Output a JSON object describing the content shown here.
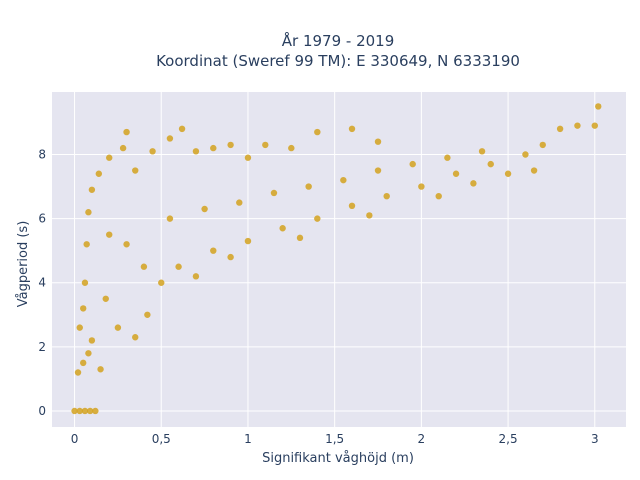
{
  "chart_data": {
    "type": "scatter",
    "title_lines": [
      "År 1979 - 2019",
      "Koordinat (Sweref 99 TM): E 330649, N 6333190"
    ],
    "xlabel": "Signifikant våghöjd (m)",
    "ylabel": "Vågperiod (s)",
    "xlim": [
      -0.13,
      3.18
    ],
    "ylim": [
      -0.5,
      9.95
    ],
    "x_ticks": [
      0,
      0.5,
      1,
      1.5,
      2,
      2.5,
      3
    ],
    "x_tick_labels": [
      "0",
      "0,5",
      "1",
      "1,5",
      "2",
      "2,5",
      "3"
    ],
    "y_ticks": [
      0,
      2,
      4,
      6,
      8
    ],
    "y_tick_labels": [
      "0",
      "2",
      "4",
      "6",
      "8"
    ],
    "grid": true,
    "marker_color": "#d4a21f",
    "background_color": "#e5e5f0",
    "series": [
      {
        "points": [
          [
            0.0,
            0.0
          ],
          [
            0.03,
            0.0
          ],
          [
            0.06,
            0.0
          ],
          [
            0.09,
            0.0
          ],
          [
            0.12,
            0.0
          ],
          [
            0.02,
            1.2
          ],
          [
            0.05,
            1.5
          ],
          [
            0.08,
            1.8
          ],
          [
            0.1,
            2.2
          ],
          [
            0.15,
            1.3
          ],
          [
            0.03,
            2.6
          ],
          [
            0.05,
            3.2
          ],
          [
            0.06,
            4.0
          ],
          [
            0.07,
            5.2
          ],
          [
            0.08,
            6.2
          ],
          [
            0.1,
            6.9
          ],
          [
            0.14,
            7.4
          ],
          [
            0.2,
            7.9
          ],
          [
            0.28,
            8.2
          ],
          [
            0.3,
            8.7
          ],
          [
            0.18,
            3.5
          ],
          [
            0.25,
            2.6
          ],
          [
            0.35,
            2.3
          ],
          [
            0.42,
            3.0
          ],
          [
            0.2,
            5.5
          ],
          [
            0.35,
            7.5
          ],
          [
            0.45,
            8.1
          ],
          [
            0.55,
            8.5
          ],
          [
            0.62,
            8.8
          ],
          [
            0.7,
            8.1
          ],
          [
            0.8,
            8.2
          ],
          [
            0.9,
            8.3
          ],
          [
            1.0,
            7.9
          ],
          [
            1.1,
            8.3
          ],
          [
            1.25,
            8.2
          ],
          [
            1.4,
            8.7
          ],
          [
            1.6,
            8.8
          ],
          [
            1.75,
            8.4
          ],
          [
            0.5,
            4.0
          ],
          [
            0.6,
            4.5
          ],
          [
            0.8,
            5.0
          ],
          [
            1.0,
            5.3
          ],
          [
            1.2,
            5.7
          ],
          [
            1.4,
            6.0
          ],
          [
            1.6,
            6.4
          ],
          [
            1.8,
            6.7
          ],
          [
            2.0,
            7.0
          ],
          [
            2.2,
            7.4
          ],
          [
            2.4,
            7.7
          ],
          [
            2.6,
            8.0
          ],
          [
            2.7,
            8.3
          ],
          [
            2.8,
            8.8
          ],
          [
            2.9,
            8.9
          ],
          [
            3.0,
            8.9
          ],
          [
            3.02,
            9.5
          ],
          [
            0.55,
            6.0
          ],
          [
            0.75,
            6.3
          ],
          [
            0.95,
            6.5
          ],
          [
            1.15,
            6.8
          ],
          [
            1.35,
            7.0
          ],
          [
            1.55,
            7.2
          ],
          [
            1.75,
            7.5
          ],
          [
            1.95,
            7.7
          ],
          [
            2.15,
            7.9
          ],
          [
            2.35,
            8.1
          ],
          [
            0.7,
            4.2
          ],
          [
            0.9,
            4.8
          ],
          [
            1.3,
            5.4
          ],
          [
            1.7,
            6.1
          ],
          [
            2.1,
            6.7
          ],
          [
            2.3,
            7.1
          ],
          [
            2.5,
            7.4
          ],
          [
            2.65,
            7.5
          ],
          [
            0.4,
            4.5
          ],
          [
            0.3,
            5.2
          ]
        ]
      }
    ]
  }
}
